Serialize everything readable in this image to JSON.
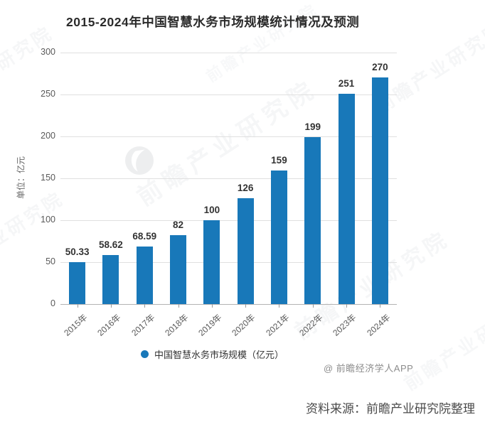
{
  "title": "2015-2024年中国智慧水务市场规模统计情况及预测",
  "chart_data": {
    "type": "bar",
    "categories": [
      "2015年",
      "2016年",
      "2017年",
      "2018年",
      "2019年",
      "2020年",
      "2021年",
      "2022年",
      "2023年",
      "2024年"
    ],
    "values": [
      50.33,
      58.62,
      68.59,
      82,
      100,
      126,
      159,
      199,
      251,
      270
    ],
    "title": "2015-2024年中国智慧水务市场规模统计情况及预测",
    "xlabel": "",
    "ylabel": "单位：亿元",
    "ylim": [
      0,
      300
    ],
    "yticks": [
      0,
      50,
      100,
      150,
      200,
      250,
      300
    ],
    "grid": true,
    "bar_value_labels": true,
    "legend_position": "bottom",
    "bar_color": "#1878b9"
  },
  "legend": {
    "label": "中国智慧水务市场规模（亿元）"
  },
  "watermark": {
    "text": "前瞻产业研究院",
    "logo": "qianzhan-logo"
  },
  "attribution": "@ 前瞻经济学人APP",
  "footer": {
    "source": "资料来源：前瞻产业研究院整理"
  },
  "colors": {
    "bar": "#1878b9",
    "grid": "#e0e0e0",
    "axis": "#b3b3b3",
    "title_text": "#2b2b2b",
    "axis_text": "#595959",
    "value_label_text": "#333333",
    "attribution_text": "#8c8c8c",
    "source_text": "#4a4a4a"
  }
}
